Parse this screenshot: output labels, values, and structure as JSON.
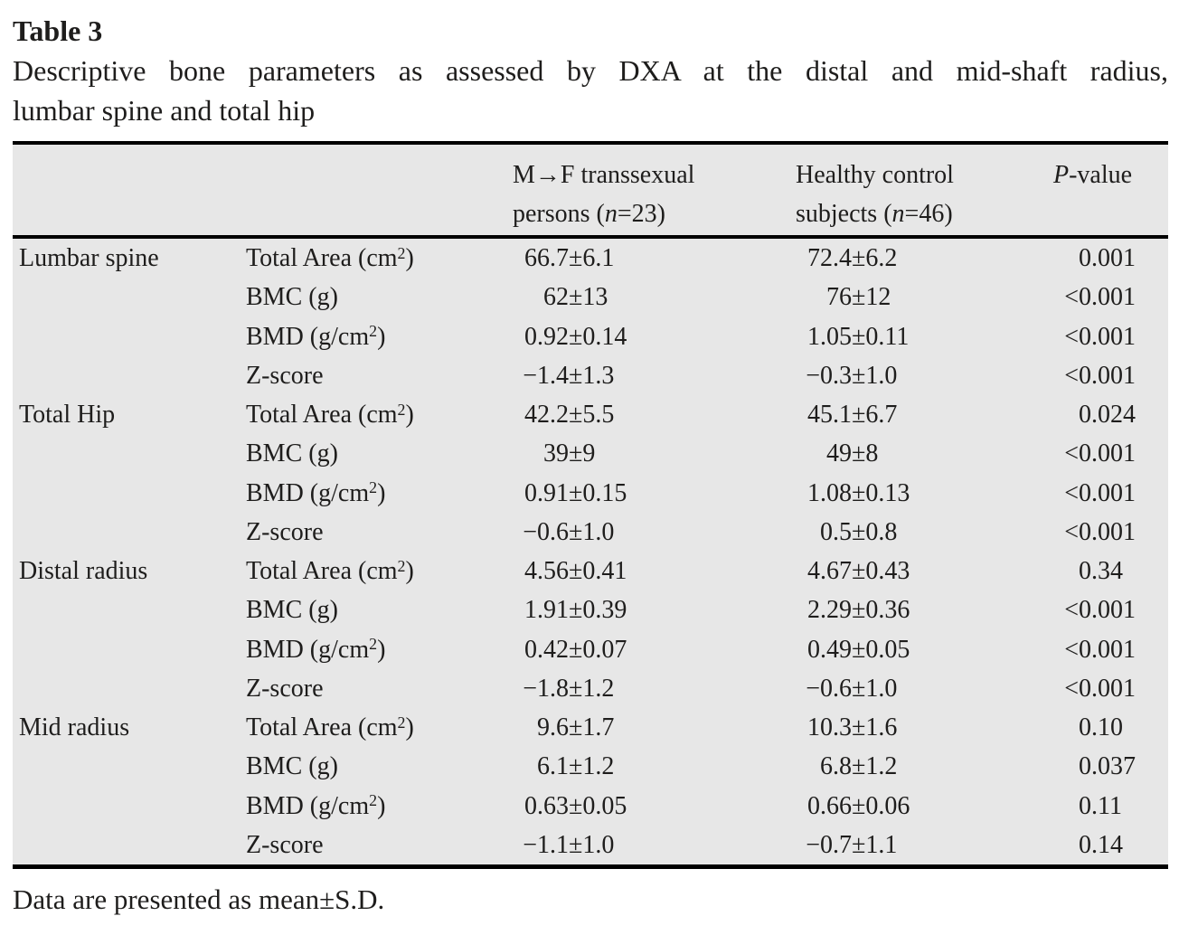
{
  "title": "Table 3",
  "caption_line1": "Descriptive bone parameters as assessed by DXA at the distal and mid-shaft radius,",
  "caption_line2": "lumbar spine and total hip",
  "footnote": "Data are presented as mean±S.D.",
  "colors": {
    "table_background": "#e7e7e7",
    "rule": "#000000",
    "text": "#1e1d1c"
  },
  "table": {
    "header": {
      "group1": {
        "line1": "M→F transsexual",
        "line2_pre": "persons (",
        "n": "n",
        "line2_post": "=23)"
      },
      "group2": {
        "line1": "Healthy control",
        "line2_pre": "subjects (",
        "n": "n",
        "line2_post": "=46)"
      },
      "p": {
        "italic": "P",
        "rest": "-value"
      }
    },
    "rows": [
      {
        "region": "Lumbar spine",
        "param_pre": "Total Area (cm",
        "param_sup": "2",
        "param_post": ")",
        "mf": "66.7±6.1",
        "hc": "72.4±6.2",
        "p": "0.001"
      },
      {
        "region": "",
        "param_pre": "BMC (g)",
        "param_sup": "",
        "param_post": "",
        "mf": "62±13",
        "hc": "76±12",
        "p": "<0.001"
      },
      {
        "region": "",
        "param_pre": "BMD (g/cm",
        "param_sup": "2",
        "param_post": ")",
        "mf": "0.92±0.14",
        "hc": "1.05±0.11",
        "p": "<0.001"
      },
      {
        "region": "",
        "param_pre": "Z-score",
        "param_sup": "",
        "param_post": "",
        "mf": "−1.4±1.3",
        "hc": "−0.3±1.0",
        "p": "<0.001"
      },
      {
        "region": "Total Hip",
        "param_pre": "Total Area (cm",
        "param_sup": "2",
        "param_post": ")",
        "mf": "42.2±5.5",
        "hc": "45.1±6.7",
        "p": "0.024"
      },
      {
        "region": "",
        "param_pre": "BMC (g)",
        "param_sup": "",
        "param_post": "",
        "mf": "39±9",
        "hc": "49±8",
        "p": "<0.001"
      },
      {
        "region": "",
        "param_pre": "BMD (g/cm",
        "param_sup": "2",
        "param_post": ")",
        "mf": "0.91±0.15",
        "hc": "1.08±0.13",
        "p": "<0.001"
      },
      {
        "region": "",
        "param_pre": "Z-score",
        "param_sup": "",
        "param_post": "",
        "mf": "−0.6±1.0",
        "hc": "0.5±0.8",
        "p": "<0.001"
      },
      {
        "region": "Distal radius",
        "param_pre": "Total Area (cm",
        "param_sup": "2",
        "param_post": ")",
        "mf": "4.56±0.41",
        "hc": "4.67±0.43",
        "p": "0.34"
      },
      {
        "region": "",
        "param_pre": "BMC (g)",
        "param_sup": "",
        "param_post": "",
        "mf": "1.91±0.39",
        "hc": "2.29±0.36",
        "p": "<0.001"
      },
      {
        "region": "",
        "param_pre": "BMD (g/cm",
        "param_sup": "2",
        "param_post": ")",
        "mf": "0.42±0.07",
        "hc": "0.49±0.05",
        "p": "<0.001"
      },
      {
        "region": "",
        "param_pre": "Z-score",
        "param_sup": "",
        "param_post": "",
        "mf": "−1.8±1.2",
        "hc": "−0.6±1.0",
        "p": "<0.001"
      },
      {
        "region": "Mid radius",
        "param_pre": "Total Area (cm",
        "param_sup": "2",
        "param_post": ")",
        "mf": "9.6±1.7",
        "hc": "10.3±1.6",
        "p": "0.10"
      },
      {
        "region": "",
        "param_pre": "BMC (g)",
        "param_sup": "",
        "param_post": "",
        "mf": "6.1±1.2",
        "hc": "6.8±1.2",
        "p": "0.037"
      },
      {
        "region": "",
        "param_pre": "BMD (g/cm",
        "param_sup": "2",
        "param_post": ")",
        "mf": "0.63±0.05",
        "hc": "0.66±0.06",
        "p": "0.11"
      },
      {
        "region": "",
        "param_pre": "Z-score",
        "param_sup": "",
        "param_post": "",
        "mf": "−1.1±1.0",
        "hc": "−0.7±1.1",
        "p": "0.14"
      }
    ]
  }
}
